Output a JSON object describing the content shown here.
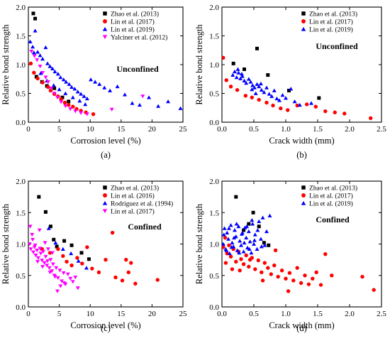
{
  "chart_data": [
    {
      "type": "scatter",
      "panel_label": "(a)",
      "annotation": "Unconfined",
      "xlabel": "Corrosion level (%)",
      "ylabel": "Relative bond strength",
      "xlim": [
        0,
        25
      ],
      "ylim": [
        0.0,
        2.0
      ],
      "xticks": [
        0,
        5,
        10,
        15,
        20,
        25
      ],
      "yticks": [
        0.0,
        0.5,
        1.0,
        1.5,
        2.0
      ],
      "tick_labels_x": [
        "0",
        "5",
        "10",
        "15",
        "20",
        "25"
      ],
      "tick_labels_y": [
        "0.0",
        "0.5",
        "1.0",
        "1.5",
        "2.0"
      ],
      "legend_position": "top-right",
      "series": [
        {
          "name": "Zhao et al. (2013)",
          "marker": "square",
          "color": "#000000",
          "x": [
            0.8,
            1.1,
            1.3,
            2.2,
            3.0,
            4.2,
            5.5,
            6.5
          ],
          "y": [
            1.89,
            1.8,
            0.79,
            0.7,
            0.63,
            0.59,
            0.43,
            0.36
          ]
        },
        {
          "name": "Lin et al. (2017)",
          "marker": "circle",
          "color": "#ff0000",
          "x": [
            0.4,
            0.9,
            1.5,
            2.3,
            3.2,
            3.6,
            4.2,
            4.8,
            5.3,
            5.9,
            6.5,
            7.2,
            7.8,
            8.5,
            9.3,
            10.5
          ],
          "y": [
            1.02,
            0.86,
            0.76,
            0.69,
            0.61,
            0.55,
            0.49,
            0.45,
            0.4,
            0.34,
            0.3,
            0.27,
            0.23,
            0.2,
            0.17,
            0.14
          ]
        },
        {
          "name": "Lin et al. (2019)",
          "marker": "triangle-up",
          "color": "#0000ff",
          "x": [
            0.3,
            0.7,
            1.1,
            1.5,
            1.9,
            2.3,
            2.8,
            3.1,
            3.5,
            3.9,
            4.3,
            4.8,
            5.2,
            5.7,
            6.1,
            6.6,
            7.0,
            7.5,
            8.0,
            8.5,
            9.0,
            9.5,
            10.1,
            10.8,
            11.5,
            12.3,
            13.2,
            14.4,
            15.6,
            16.8,
            18.0,
            19.5,
            21.0,
            22.6,
            24.6,
            0.9,
            2.0,
            3.0,
            4.1,
            5.0,
            6.0,
            7.2,
            8.3,
            9.2
          ],
          "y": [
            1.4,
            1.31,
            1.59,
            1.22,
            1.16,
            1.1,
            1.3,
            1.02,
            0.97,
            0.93,
            0.88,
            0.84,
            0.78,
            0.74,
            0.7,
            0.66,
            0.61,
            0.58,
            0.53,
            0.49,
            0.45,
            0.41,
            0.74,
            0.7,
            0.66,
            0.6,
            0.55,
            0.62,
            0.48,
            0.33,
            0.3,
            0.43,
            0.28,
            0.36,
            0.24,
            1.21,
            0.85,
            0.72,
            0.64,
            0.57,
            0.5,
            0.43,
            0.37,
            0.31
          ]
        },
        {
          "name": "Yalciner et al. (2012)",
          "marker": "triangle-down",
          "color": "#ff00ff",
          "x": [
            0.5,
            1.0,
            1.4,
            1.9,
            2.3,
            2.8,
            3.2,
            3.7,
            4.2,
            4.7,
            5.3,
            6.0,
            6.8,
            7.6,
            8.5,
            9.5,
            13.5,
            18.5
          ],
          "y": [
            1.23,
            1.15,
            1.08,
            0.97,
            0.86,
            0.78,
            0.7,
            0.59,
            0.5,
            0.43,
            0.35,
            0.28,
            0.23,
            0.19,
            0.16,
            0.14,
            0.22,
            0.45
          ]
        }
      ]
    },
    {
      "type": "scatter",
      "panel_label": "(b)",
      "annotation": "Unconfined",
      "xlabel": "Crack width (mm)",
      "ylabel": "Relative bond strength",
      "xlim": [
        0.0,
        2.5
      ],
      "ylim": [
        0.0,
        2.0
      ],
      "xticks": [
        0.0,
        0.5,
        1.0,
        1.5,
        2.0,
        2.5
      ],
      "yticks": [
        0.0,
        0.5,
        1.0,
        1.5,
        2.0
      ],
      "tick_labels_x": [
        "0.0",
        "0.5",
        "1.0",
        "1.5",
        "2.0",
        "2.5"
      ],
      "tick_labels_y": [
        "0.0",
        "0.5",
        "1.0",
        "1.5",
        "2.0"
      ],
      "legend_position": "top-right",
      "series": [
        {
          "name": "Zhao et al. (2013)",
          "marker": "square",
          "color": "#000000",
          "x": [
            0.18,
            0.35,
            0.55,
            0.72,
            1.05,
            1.52
          ],
          "y": [
            1.02,
            0.92,
            1.28,
            0.82,
            0.55,
            0.42
          ]
        },
        {
          "name": "Lin et al. (2017)",
          "marker": "circle",
          "color": "#ff0000",
          "x": [
            0.02,
            0.07,
            0.14,
            0.24,
            0.37,
            0.47,
            0.58,
            0.7,
            0.8,
            0.92,
            1.03,
            1.18,
            1.33,
            1.47,
            1.62,
            1.77,
            1.92,
            2.33
          ],
          "y": [
            1.12,
            0.73,
            0.62,
            0.56,
            0.46,
            0.43,
            0.39,
            0.34,
            0.29,
            0.24,
            0.21,
            0.29,
            0.31,
            0.27,
            0.19,
            0.17,
            0.15,
            0.07
          ]
        },
        {
          "name": "Lin et al. (2019)",
          "marker": "triangle-up",
          "color": "#0000ff",
          "x": [
            0.17,
            0.2,
            0.23,
            0.26,
            0.29,
            0.32,
            0.35,
            0.38,
            0.42,
            0.45,
            0.48,
            0.51,
            0.55,
            0.58,
            0.62,
            0.66,
            0.7,
            0.74,
            0.78,
            0.82,
            0.86,
            0.9,
            0.95,
            1.0,
            1.08,
            1.14,
            1.22,
            1.4,
            0.25,
            0.31,
            0.47,
            0.53,
            0.61
          ],
          "y": [
            0.82,
            0.88,
            0.78,
            0.86,
            0.76,
            0.8,
            0.72,
            0.68,
            0.75,
            0.7,
            0.64,
            0.6,
            0.66,
            0.62,
            0.56,
            0.52,
            0.6,
            0.49,
            0.45,
            0.55,
            0.41,
            0.38,
            0.47,
            0.42,
            0.58,
            0.36,
            0.3,
            0.33,
            0.92,
            0.84,
            0.57,
            0.5,
            0.67
          ]
        }
      ]
    },
    {
      "type": "scatter",
      "panel_label": "(c)",
      "annotation": "Confined",
      "xlabel": "Corrosion level (%)",
      "ylabel": "Relative bond strength",
      "xlim": [
        0,
        25
      ],
      "ylim": [
        0.0,
        2.0
      ],
      "xticks": [
        0,
        5,
        10,
        15,
        20,
        25
      ],
      "yticks": [
        0.0,
        0.5,
        1.0,
        1.5,
        2.0
      ],
      "tick_labels_x": [
        "0",
        "5",
        "10",
        "15",
        "20",
        "25"
      ],
      "tick_labels_y": [
        "0.0",
        "0.5",
        "1.0",
        "1.5",
        "2.0"
      ],
      "legend_position": "top-right",
      "series": [
        {
          "name": "Zhao et al. (2013)",
          "marker": "square",
          "color": "#000000",
          "x": [
            1.7,
            2.8,
            3.6,
            4.1,
            4.6,
            5.8,
            7.0,
            8.6,
            9.8
          ],
          "y": [
            1.75,
            1.51,
            1.28,
            1.07,
            0.96,
            1.05,
            0.98,
            0.86,
            0.76
          ]
        },
        {
          "name": "Lin et al. (2016)",
          "marker": "circle",
          "color": "#ff0000",
          "x": [
            2.2,
            3.5,
            4.8,
            5.6,
            6.2,
            7.0,
            7.9,
            8.7,
            9.5,
            10.3,
            11.4,
            12.5,
            13.6,
            14.1,
            15.2,
            15.8,
            16.2,
            16.6,
            17.3,
            20.9
          ],
          "y": [
            0.92,
            0.86,
            0.92,
            0.81,
            0.72,
            0.66,
            0.78,
            0.69,
            0.95,
            0.61,
            0.55,
            0.75,
            1.18,
            0.47,
            0.42,
            0.75,
            0.55,
            0.7,
            0.37,
            0.43
          ]
        },
        {
          "name": "Rodriguez et al. (1994)",
          "marker": "triangle-up",
          "color": "#0000ff",
          "x": [
            3.3,
            4.4,
            5.6,
            6.9,
            8.1,
            9.4
          ],
          "y": [
            1.25,
            1.02,
            0.92,
            0.85,
            0.73,
            0.62
          ]
        },
        {
          "name": "Lin et al. (2017)",
          "marker": "triangle-down",
          "color": "#ff00ff",
          "x": [
            0.2,
            0.4,
            0.6,
            0.8,
            1.0,
            1.2,
            1.4,
            1.6,
            1.8,
            2.0,
            2.2,
            2.4,
            2.6,
            2.8,
            3.0,
            3.2,
            3.4,
            3.6,
            3.8,
            4.0,
            4.2,
            4.5,
            4.8,
            5.1,
            5.4,
            5.7,
            6.0,
            6.4,
            6.8,
            7.2,
            7.6,
            8.0,
            0.3,
            0.7,
            1.1,
            1.5,
            1.9,
            2.3,
            2.7,
            3.1,
            3.5,
            3.9,
            4.3,
            4.7,
            5.2,
            5.8
          ],
          "y": [
            1.0,
            0.92,
            1.15,
            0.87,
            0.95,
            0.82,
            0.9,
            0.78,
            1.22,
            0.85,
            0.74,
            0.88,
            0.7,
            0.8,
            0.66,
            0.92,
            0.62,
            0.75,
            0.57,
            0.68,
            0.5,
            0.62,
            0.46,
            0.58,
            0.41,
            0.54,
            0.36,
            0.52,
            0.45,
            0.4,
            0.47,
            0.3,
            1.28,
            1.07,
            0.98,
            0.72,
            0.93,
            0.64,
            1.02,
            0.73,
            0.55,
            0.86,
            0.48,
            0.25,
            0.33,
            0.38
          ]
        }
      ]
    },
    {
      "type": "scatter",
      "panel_label": "(d)",
      "annotation": "Confined",
      "xlabel": "Crack width (mm)",
      "ylabel": "Relative bond strength",
      "xlim": [
        0.0,
        2.5
      ],
      "ylim": [
        0.0,
        2.0
      ],
      "xticks": [
        0.0,
        0.5,
        1.0,
        1.5,
        2.0,
        2.5
      ],
      "yticks": [
        0.0,
        0.5,
        1.0,
        1.5,
        2.0
      ],
      "tick_labels_x": [
        "0.0",
        "0.5",
        "1.0",
        "1.5",
        "2.0",
        "2.5"
      ],
      "tick_labels_y": [
        "0.0",
        "0.5",
        "1.0",
        "1.5",
        "2.0"
      ],
      "legend_position": "top-right",
      "series": [
        {
          "name": "Zhao et al. (2013)",
          "marker": "square",
          "color": "#000000",
          "x": [
            0.22,
            0.34,
            0.42,
            0.49,
            0.58,
            0.66,
            0.73
          ],
          "y": [
            1.75,
            1.22,
            1.32,
            1.5,
            1.28,
            1.02,
            0.98
          ]
        },
        {
          "name": "Lin et al. (2017)",
          "marker": "circle",
          "color": "#ff0000",
          "x": [
            0.02,
            0.05,
            0.08,
            0.11,
            0.14,
            0.18,
            0.22,
            0.26,
            0.3,
            0.34,
            0.38,
            0.42,
            0.47,
            0.52,
            0.57,
            0.62,
            0.67,
            0.72,
            0.77,
            0.82,
            0.88,
            0.94,
            1.0,
            1.06,
            1.12,
            1.18,
            1.24,
            1.3,
            1.36,
            1.42,
            1.48,
            1.55,
            1.62,
            1.72,
            2.2,
            2.38,
            0.06,
            0.16,
            0.28,
            0.44,
            0.64,
            0.84,
            1.04
          ],
          "y": [
            0.95,
            1.1,
            0.85,
            0.98,
            0.8,
            0.92,
            0.72,
            0.88,
            0.76,
            0.68,
            0.82,
            0.64,
            0.78,
            0.6,
            0.74,
            0.55,
            0.7,
            0.62,
            0.52,
            0.66,
            0.48,
            0.58,
            0.45,
            0.54,
            0.42,
            0.62,
            0.38,
            0.5,
            0.36,
            0.45,
            0.55,
            0.35,
            0.84,
            0.5,
            0.48,
            0.27,
            0.7,
            0.6,
            0.58,
            0.75,
            0.42,
            0.9,
            0.25
          ]
        },
        {
          "name": "Lin et al. (2019)",
          "marker": "triangle-up",
          "color": "#0000ff",
          "x": [
            0.02,
            0.04,
            0.06,
            0.08,
            0.1,
            0.12,
            0.14,
            0.16,
            0.18,
            0.2,
            0.22,
            0.24,
            0.26,
            0.28,
            0.3,
            0.32,
            0.34,
            0.36,
            0.38,
            0.4,
            0.42,
            0.44,
            0.46,
            0.48,
            0.5,
            0.52,
            0.55,
            0.58,
            0.61,
            0.64,
            0.67,
            0.7,
            0.75,
            0.03,
            0.07,
            0.11,
            0.15,
            0.19,
            0.23,
            0.27,
            0.31,
            0.35,
            0.39,
            0.43,
            0.47,
            0.51,
            0.56,
            0.62
          ],
          "y": [
            1.0,
            1.25,
            0.92,
            1.18,
            1.08,
            0.85,
            1.3,
            1.02,
            0.96,
            1.22,
            1.12,
            0.9,
            1.28,
            1.05,
            0.98,
            1.18,
            0.88,
            1.26,
            1.1,
            0.94,
            1.2,
            1.04,
            0.86,
            1.32,
            1.0,
            1.15,
            0.92,
            1.36,
            1.08,
            1.42,
            0.98,
            1.2,
            1.45,
            1.15,
            0.9,
            1.25,
            0.95,
            1.1,
            1.32,
            0.86,
            1.16,
            1.02,
            1.28,
            0.92,
            1.38,
            1.06,
            1.22,
            0.96
          ]
        }
      ]
    }
  ]
}
